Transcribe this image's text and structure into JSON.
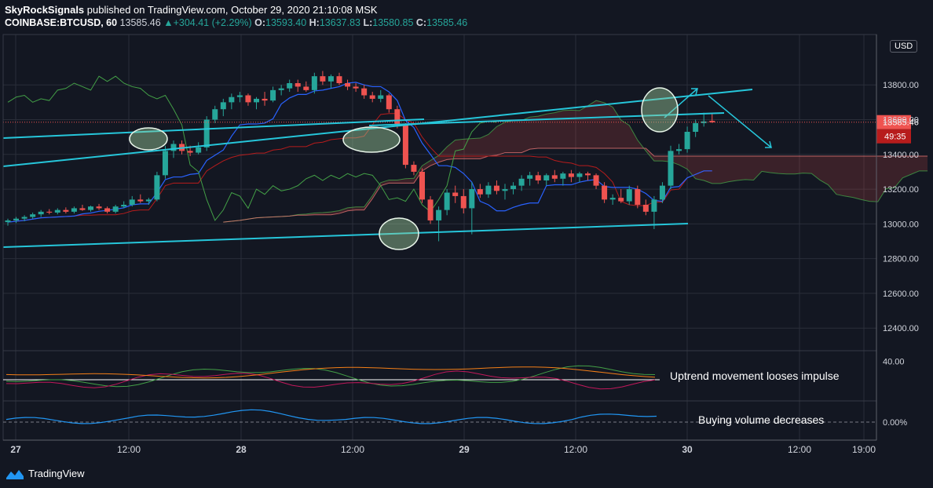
{
  "header": {
    "author": "SkyRockSignals",
    "published_text": "published on TradingView.com, October 29, 2020 21:10:08 MSK",
    "symbol": "COINBASE:BTCUSD, 60",
    "last": "13585.46",
    "change": "+304.41 (+2.29%)",
    "o_label": "O:",
    "o": "13593.40",
    "h_label": "H:",
    "h": "13637.83",
    "l_label": "L:",
    "l": "13580.85",
    "c_label": "C:",
    "c": "13585.46"
  },
  "currency": "USD",
  "price_tag": "13585.46",
  "countdown": "49:35",
  "annotations": {
    "osc_note": "Uptrend movement looses impulse",
    "vol_note": "Buying volume decreases"
  },
  "footer": {
    "brand": "TradingView"
  },
  "colors": {
    "up": "#26a69a",
    "down": "#ef5350",
    "trend": "#26c6da",
    "tenkan": "#2962ff",
    "kijun": "#b71c1c",
    "chikou": "#43a047",
    "ellipse": "#9ccc9c"
  },
  "chart_data": {
    "type": "candlestick",
    "y_range": [
      12270,
      14090
    ],
    "y_ticks": [
      "13800.00",
      "13600.00",
      "13400.00",
      "13200.00",
      "13000.00",
      "12800.00",
      "12600.00",
      "12400.00"
    ],
    "x_ticks": [
      "27",
      "12:00",
      "28",
      "12:00",
      "29",
      "12:00",
      "30",
      "12:00",
      "19:00"
    ],
    "grid": true,
    "candles": [
      [
        13010,
        13030,
        12990,
        13020
      ],
      [
        13020,
        13040,
        13005,
        13030
      ],
      [
        13030,
        13050,
        13015,
        13040
      ],
      [
        13040,
        13065,
        13030,
        13055
      ],
      [
        13055,
        13080,
        13040,
        13070
      ],
      [
        13070,
        13085,
        13055,
        13065
      ],
      [
        13065,
        13090,
        13055,
        13080
      ],
      [
        13080,
        13095,
        13060,
        13070
      ],
      [
        13070,
        13100,
        13060,
        13090
      ],
      [
        13090,
        13110,
        13075,
        13080
      ],
      [
        13080,
        13105,
        13070,
        13100
      ],
      [
        13100,
        13115,
        13080,
        13090
      ],
      [
        13090,
        13100,
        13060,
        13070
      ],
      [
        13070,
        13110,
        13060,
        13100
      ],
      [
        13100,
        13130,
        13090,
        13110
      ],
      [
        13110,
        13160,
        13100,
        13140
      ],
      [
        13140,
        13170,
        13120,
        13130
      ],
      [
        13130,
        13150,
        13110,
        13140
      ],
      [
        13140,
        13300,
        13130,
        13280
      ],
      [
        13280,
        13450,
        13260,
        13420
      ],
      [
        13420,
        13480,
        13380,
        13460
      ],
      [
        13460,
        13480,
        13400,
        13420
      ],
      [
        13420,
        13450,
        13390,
        13410
      ],
      [
        13410,
        13470,
        13400,
        13440
      ],
      [
        13440,
        13620,
        13420,
        13600
      ],
      [
        13600,
        13680,
        13580,
        13660
      ],
      [
        13660,
        13720,
        13620,
        13700
      ],
      [
        13700,
        13750,
        13660,
        13730
      ],
      [
        13730,
        13760,
        13700,
        13740
      ],
      [
        13740,
        13750,
        13680,
        13700
      ],
      [
        13700,
        13730,
        13660,
        13720
      ],
      [
        13720,
        13760,
        13680,
        13710
      ],
      [
        13710,
        13790,
        13700,
        13770
      ],
      [
        13770,
        13800,
        13740,
        13780
      ],
      [
        13780,
        13830,
        13760,
        13810
      ],
      [
        13810,
        13830,
        13760,
        13790
      ],
      [
        13790,
        13820,
        13760,
        13770
      ],
      [
        13770,
        13870,
        13750,
        13850
      ],
      [
        13850,
        13880,
        13800,
        13820
      ],
      [
        13820,
        13860,
        13780,
        13850
      ],
      [
        13850,
        13870,
        13800,
        13810
      ],
      [
        13810,
        13830,
        13770,
        13790
      ],
      [
        13790,
        13810,
        13760,
        13780
      ],
      [
        13780,
        13800,
        13720,
        13740
      ],
      [
        13740,
        13760,
        13700,
        13720
      ],
      [
        13720,
        13770,
        13700,
        13740
      ],
      [
        13740,
        13750,
        13640,
        13660
      ],
      [
        13660,
        13680,
        13550,
        13570
      ],
      [
        13570,
        13580,
        13320,
        13340
      ],
      [
        13340,
        13360,
        13280,
        13300
      ],
      [
        13300,
        13320,
        13120,
        13140
      ],
      [
        13140,
        13160,
        13000,
        13020
      ],
      [
        13020,
        13100,
        12900,
        13080
      ],
      [
        13080,
        13200,
        13050,
        13180
      ],
      [
        13180,
        13220,
        13120,
        13160
      ],
      [
        13160,
        13200,
        13060,
        13090
      ],
      [
        13090,
        13240,
        12940,
        13200
      ],
      [
        13200,
        13230,
        13150,
        13170
      ],
      [
        13170,
        13240,
        13150,
        13220
      ],
      [
        13220,
        13250,
        13170,
        13190
      ],
      [
        13190,
        13230,
        13140,
        13200
      ],
      [
        13200,
        13240,
        13170,
        13220
      ],
      [
        13220,
        13280,
        13190,
        13260
      ],
      [
        13260,
        13300,
        13220,
        13280
      ],
      [
        13280,
        13300,
        13230,
        13250
      ],
      [
        13250,
        13290,
        13220,
        13280
      ],
      [
        13280,
        13310,
        13240,
        13260
      ],
      [
        13260,
        13300,
        13220,
        13290
      ],
      [
        13290,
        13310,
        13240,
        13270
      ],
      [
        13270,
        13300,
        13240,
        13290
      ],
      [
        13290,
        13300,
        13250,
        13280
      ],
      [
        13280,
        13290,
        13200,
        13220
      ],
      [
        13220,
        13240,
        13120,
        13140
      ],
      [
        13140,
        13170,
        13110,
        13150
      ],
      [
        13150,
        13200,
        13120,
        13130
      ],
      [
        13130,
        13220,
        13110,
        13200
      ],
      [
        13200,
        13220,
        13090,
        13110
      ],
      [
        13110,
        13140,
        13050,
        13070
      ],
      [
        13070,
        13160,
        12970,
        13140
      ],
      [
        13140,
        13240,
        13120,
        13220
      ],
      [
        13220,
        13450,
        13200,
        13420
      ],
      [
        13420,
        13460,
        13400,
        13430
      ],
      [
        13430,
        13560,
        13410,
        13530
      ],
      [
        13530,
        13600,
        13500,
        13580
      ],
      [
        13580,
        13640,
        13560,
        13590
      ],
      [
        13593,
        13638,
        13581,
        13585
      ]
    ],
    "oscillator_range": [
      0,
      50
    ],
    "oscillator_ticks": [
      "40.00"
    ],
    "volume_ticks": [
      "0.00%"
    ]
  }
}
